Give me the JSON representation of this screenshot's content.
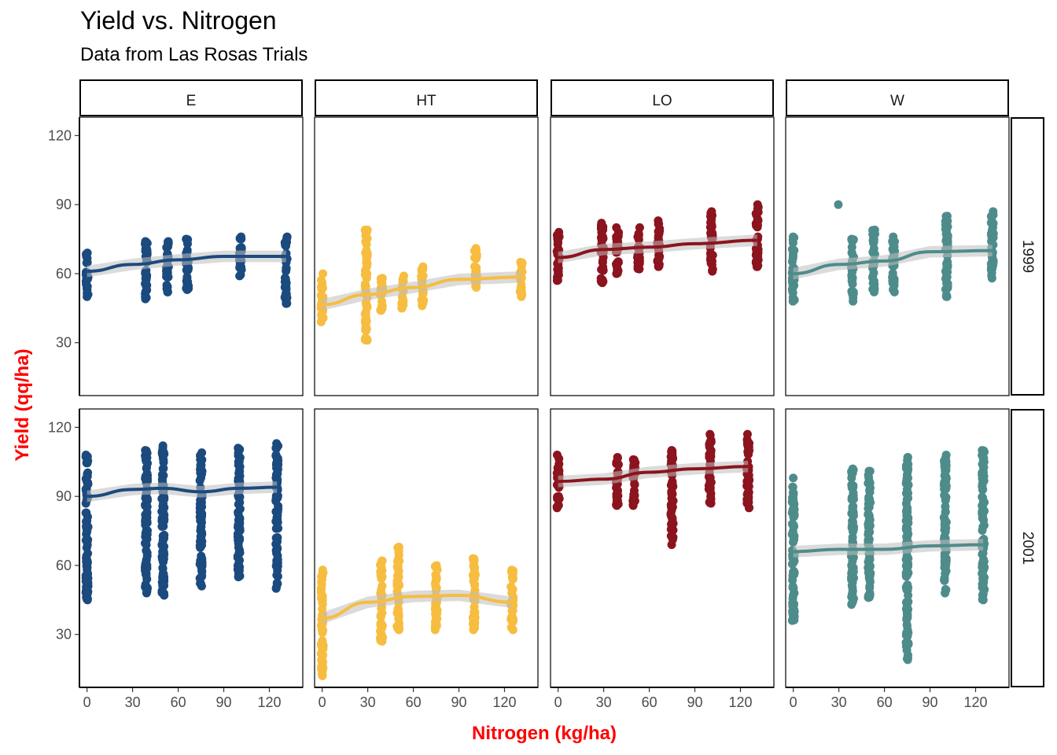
{
  "title": "Yield vs. Nitrogen",
  "subtitle": "Data from Las Rosas Trials",
  "chart_data": {
    "type": "scatter",
    "facet_columns": [
      "E",
      "HT",
      "LO",
      "W"
    ],
    "facet_rows": [
      "1999",
      "2001"
    ],
    "xlabel": "Nitrogen (kg/ha)",
    "ylabel": "Yield (qq/ha)",
    "xlim": [
      -5,
      142
    ],
    "ylim": [
      7,
      128
    ],
    "xticks": [
      0,
      30,
      60,
      90,
      120
    ],
    "yticks": [
      30,
      60,
      90,
      120
    ],
    "colors": {
      "E": "#1b4a7e",
      "HT": "#f6bd40",
      "LO": "#8b141e",
      "W": "#4e8c8b",
      "smooth_band": "#bdbdbd",
      "axis_title": "#ff0000"
    },
    "panels": [
      {
        "col": "E",
        "row": "1999",
        "x_levels": [
          0,
          39,
          53,
          66,
          101,
          131
        ],
        "ranges": [
          [
            50,
            69
          ],
          [
            49,
            74
          ],
          [
            52,
            74
          ],
          [
            53,
            75
          ],
          [
            59,
            76
          ],
          [
            47,
            76
          ]
        ],
        "smooth": [
          [
            0,
            61
          ],
          [
            30,
            64
          ],
          [
            60,
            66
          ],
          [
            90,
            67.5
          ],
          [
            131,
            67.5
          ]
        ]
      },
      {
        "col": "HT",
        "row": "1999",
        "x_levels": [
          0,
          29,
          39,
          53,
          66,
          101,
          131
        ],
        "ranges": [
          [
            39,
            60
          ],
          [
            31,
            79
          ],
          [
            44,
            58
          ],
          [
            45,
            59
          ],
          [
            46,
            63
          ],
          [
            54,
            71
          ],
          [
            50,
            65
          ]
        ],
        "smooth": [
          [
            0,
            46.5
          ],
          [
            30,
            51
          ],
          [
            60,
            54
          ],
          [
            90,
            57.5
          ],
          [
            131,
            58.5
          ]
        ]
      },
      {
        "col": "LO",
        "row": "1999",
        "x_levels": [
          0,
          29,
          39,
          53,
          66,
          101,
          131
        ],
        "ranges": [
          [
            57,
            78
          ],
          [
            56,
            82
          ],
          [
            60,
            80
          ],
          [
            62,
            80
          ],
          [
            63,
            83
          ],
          [
            61,
            87
          ],
          [
            63,
            90
          ]
        ],
        "smooth": [
          [
            0,
            67
          ],
          [
            30,
            70.5
          ],
          [
            60,
            71.5
          ],
          [
            90,
            73
          ],
          [
            131,
            74.5
          ]
        ]
      },
      {
        "col": "W",
        "row": "1999",
        "x_levels": [
          0,
          29,
          39,
          53,
          66,
          101,
          131
        ],
        "ranges": [
          [
            48,
            76
          ],
          [
            90,
            90
          ],
          [
            48,
            75
          ],
          [
            52,
            79
          ],
          [
            52,
            76
          ],
          [
            50,
            85
          ],
          [
            58,
            87
          ]
        ],
        "smooth": [
          [
            0,
            60
          ],
          [
            30,
            64
          ],
          [
            60,
            65.5
          ],
          [
            90,
            69.5
          ],
          [
            131,
            70
          ]
        ]
      },
      {
        "col": "E",
        "row": "2001",
        "x_levels": [
          0,
          39,
          50,
          75,
          100,
          125
        ],
        "ranges": [
          [
            45,
            108
          ],
          [
            48,
            110
          ],
          [
            47,
            112
          ],
          [
            51,
            109
          ],
          [
            55,
            111
          ],
          [
            50,
            113
          ]
        ],
        "smooth": [
          [
            0,
            90
          ],
          [
            30,
            93
          ],
          [
            50,
            93.5
          ],
          [
            75,
            92
          ],
          [
            100,
            93.5
          ],
          [
            125,
            94
          ]
        ]
      },
      {
        "col": "HT",
        "row": "2001",
        "x_levels": [
          0,
          39,
          50,
          75,
          100,
          125
        ],
        "ranges": [
          [
            12,
            58
          ],
          [
            27,
            62
          ],
          [
            32,
            68
          ],
          [
            32,
            60
          ],
          [
            32,
            63
          ],
          [
            32,
            58
          ]
        ],
        "smooth": [
          [
            0,
            37
          ],
          [
            30,
            44
          ],
          [
            60,
            46.5
          ],
          [
            90,
            47
          ],
          [
            125,
            44
          ]
        ]
      },
      {
        "col": "LO",
        "row": "2001",
        "x_levels": [
          0,
          39,
          50,
          75,
          100,
          125
        ],
        "ranges": [
          [
            85,
            108
          ],
          [
            86,
            107
          ],
          [
            86,
            106
          ],
          [
            69,
            110
          ],
          [
            87,
            117
          ],
          [
            85,
            117
          ]
        ],
        "smooth": [
          [
            0,
            96.5
          ],
          [
            30,
            97.5
          ],
          [
            60,
            100.5
          ],
          [
            90,
            102
          ],
          [
            125,
            103
          ]
        ]
      },
      {
        "col": "W",
        "row": "2001",
        "x_levels": [
          0,
          39,
          50,
          75,
          100,
          125
        ],
        "ranges": [
          [
            36,
            98
          ],
          [
            43,
            102
          ],
          [
            46,
            101
          ],
          [
            19,
            107
          ],
          [
            48,
            108
          ],
          [
            45,
            110
          ]
        ],
        "smooth": [
          [
            0,
            66
          ],
          [
            30,
            67
          ],
          [
            60,
            67
          ],
          [
            90,
            68.5
          ],
          [
            125,
            69
          ]
        ]
      }
    ]
  }
}
